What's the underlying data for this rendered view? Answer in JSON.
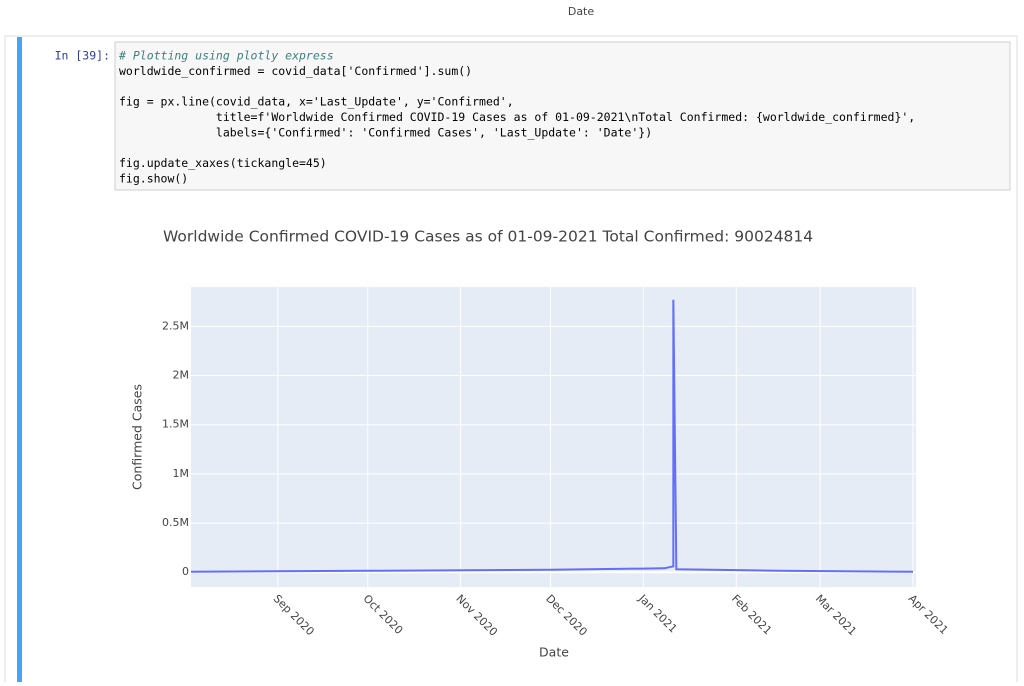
{
  "previous_output": {
    "x_axis_label": "Date"
  },
  "cell": {
    "prompt": "In [39]:",
    "code_blocks": [
      [
        "# Plotting using plotly express",
        "worldwide_confirmed = covid_data['Confirmed'].sum()"
      ],
      [
        "fig = px.line(covid_data, x='Last_Update', y='Confirmed',",
        "              title=f'Worldwide Confirmed COVID-19 Cases as of 01-09-2021\\nTotal Confirmed: {worldwide_confirmed}',",
        "              labels={'Confirmed': 'Confirmed Cases', 'Last_Update': 'Date'})"
      ],
      [
        "fig.update_xaxes(tickangle=45)",
        "fig.show()"
      ]
    ]
  },
  "chart_data": {
    "type": "line",
    "title": "Worldwide Confirmed COVID-19 Cases as of 01-09-2021 Total Confirmed: 90024814",
    "x_label": "Date",
    "y_label": "Confirmed Cases",
    "x": [
      "2020-08-03",
      "2020-10-01",
      "2020-12-01",
      "2021-01-08",
      "2021-01-11",
      "2021-01-11",
      "2021-01-12",
      "2021-02-15",
      "2021-04-01"
    ],
    "values": [
      5000,
      15000,
      25000,
      40000,
      60000,
      2770000,
      30000,
      15000,
      5000
    ],
    "color": "#636efa",
    "xlim": [
      "2020-08-03",
      "2021-04-02"
    ],
    "xticks": [
      {
        "value": "2020-09-01",
        "label": "Sep 2020"
      },
      {
        "value": "2020-10-01",
        "label": "Oct 2020"
      },
      {
        "value": "2020-11-01",
        "label": "Nov 2020"
      },
      {
        "value": "2020-12-01",
        "label": "Dec 2020"
      },
      {
        "value": "2021-01-01",
        "label": "Jan 2021"
      },
      {
        "value": "2021-02-01",
        "label": "Feb 2021"
      },
      {
        "value": "2021-03-01",
        "label": "Mar 2021"
      },
      {
        "value": "2021-04-01",
        "label": "Apr 2021"
      }
    ],
    "ylim": [
      -150000,
      2900000
    ],
    "yticks": [
      0,
      {
        "value": 500000,
        "label": "0.5M"
      },
      {
        "value": 1000000,
        "label": "1M"
      },
      {
        "value": 1500000,
        "label": "1.5M"
      },
      {
        "value": 2000000,
        "label": "2M"
      },
      {
        "value": 2500000,
        "label": "2.5M"
      }
    ],
    "grid": true
  }
}
